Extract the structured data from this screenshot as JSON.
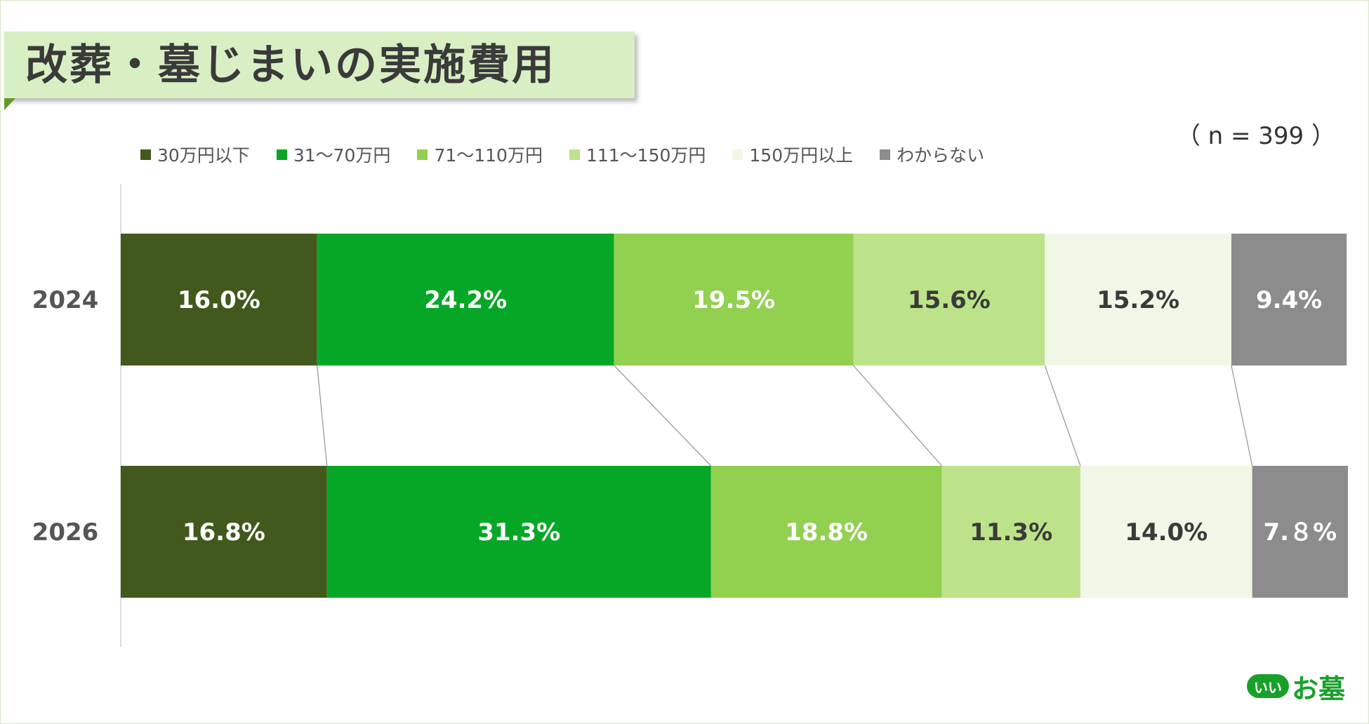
{
  "header": {
    "title": "改葬・墓じまいの実施費用"
  },
  "sample": {
    "n_label": "（ n = 399 ）"
  },
  "logo": {
    "badge": "いい",
    "text": "お墓",
    "color": "#18a12a"
  },
  "chart_data": {
    "type": "bar",
    "orientation": "horizontal",
    "stacked": "percent",
    "categories": [
      "2024",
      "2026"
    ],
    "series": [
      {
        "name": "30万円以下",
        "color": "#41591c",
        "values": [
          16.0,
          16.8
        ],
        "labels": [
          "16.0%",
          "16.8%"
        ],
        "label_color": "#ffffff"
      },
      {
        "name": "31～70万円",
        "color": "#06a726",
        "values": [
          24.2,
          31.3
        ],
        "labels": [
          "24.2%",
          "31.3%"
        ],
        "label_color": "#ffffff"
      },
      {
        "name": "71～110万円",
        "color": "#92d050",
        "values": [
          19.5,
          18.8
        ],
        "labels": [
          "19.5%",
          "18.8%"
        ],
        "label_color": "#ffffff"
      },
      {
        "name": "111～150万円",
        "color": "#bce389",
        "values": [
          15.6,
          11.3
        ],
        "labels": [
          "15.6%",
          "11.3%"
        ],
        "label_color": "#3a3a3a"
      },
      {
        "name": "150万円以上",
        "color": "#f0f7e6",
        "values": [
          15.2,
          14.0
        ],
        "labels": [
          "15.2%",
          "14.0%"
        ],
        "label_color": "#3a3a3a"
      },
      {
        "name": "わからない",
        "color": "#8c8c8c",
        "values": [
          9.4,
          7.8
        ],
        "labels": [
          "9.4%",
          "7.８%"
        ],
        "label_color": "#ffffff"
      }
    ],
    "xlim": [
      0,
      100
    ],
    "legend": "top",
    "grid": false,
    "series_lines": true
  }
}
